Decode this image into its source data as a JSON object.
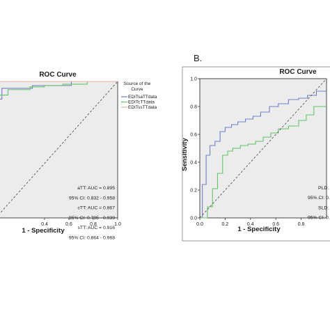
{
  "chart_data": [
    {
      "type": "line",
      "title": "ROC Curve",
      "xlabel": "1 - Specificity",
      "ylabel": "",
      "xlim": [
        0,
        1
      ],
      "ylim": [
        0,
        1
      ],
      "x_ticks": [
        "0.4",
        "0.6",
        "0.8",
        "1.0"
      ],
      "grid": false,
      "legend_title": "Source of the Curve",
      "series": [
        {
          "name": "EDITsaTTdata",
          "color": "#6f7fc9",
          "x": [
            0.0,
            0.05,
            0.05,
            0.3,
            0.3,
            0.62,
            0.62,
            0.75,
            0.75,
            1.0
          ],
          "y": [
            0.87,
            0.87,
            0.95,
            0.95,
            0.97,
            0.97,
            1.0,
            1.0,
            1.0,
            1.0
          ]
        },
        {
          "name": "EDITcTTdata",
          "color": "#62c46a",
          "x": [
            0.0,
            0.1,
            0.1,
            0.28,
            0.28,
            0.4,
            0.4,
            0.55,
            0.55,
            0.75,
            0.75,
            1.0
          ],
          "y": [
            0.9,
            0.9,
            0.94,
            0.94,
            0.96,
            0.96,
            0.97,
            0.97,
            0.98,
            0.98,
            1.0,
            1.0
          ]
        },
        {
          "name": "EDITssTTdata",
          "color": "#e2b6a2",
          "x": [
            0.0,
            0.75,
            0.75,
            1.0
          ],
          "y": [
            1.0,
            1.0,
            1.0,
            1.0
          ]
        },
        {
          "name": "",
          "color": "#555555",
          "dashed": true,
          "x": [
            0.0,
            1.0
          ],
          "y": [
            0.0,
            1.0
          ]
        }
      ],
      "annotations": [
        "aTT: AUC = 0.895",
        "95% CI: 0.832 - 0.958",
        "cTT: AUC = 0.867",
        "95% CI: 0.795 - 0.939",
        "sTT: AUC = 0.916",
        "95% CI: 0.864 - 0.968"
      ]
    },
    {
      "type": "line",
      "panel_label": "B.",
      "title": "ROC Curve",
      "xlabel": "1 - Specificity",
      "ylabel": "Sensitivity",
      "xlim": [
        0,
        1
      ],
      "ylim": [
        0,
        1
      ],
      "x_ticks": [
        "0.0",
        "0.2",
        "0.4",
        "0.6",
        "0.8"
      ],
      "y_ticks": [
        "0.0",
        "0.2",
        "0.4",
        "0.6",
        "0.8",
        "1.0"
      ],
      "grid": false,
      "series": [
        {
          "name": "",
          "color": "#6f7fc9",
          "x": [
            0.0,
            0.02,
            0.02,
            0.05,
            0.05,
            0.08,
            0.08,
            0.12,
            0.12,
            0.16,
            0.16,
            0.2,
            0.2,
            0.25,
            0.25,
            0.3,
            0.3,
            0.36,
            0.36,
            0.42,
            0.42,
            0.48,
            0.48,
            0.55,
            0.55,
            0.62,
            0.62,
            0.7,
            0.7,
            0.78,
            0.78,
            0.85,
            0.85,
            0.92,
            0.92,
            1.0
          ],
          "y": [
            0.0,
            0.0,
            0.24,
            0.24,
            0.45,
            0.45,
            0.52,
            0.52,
            0.55,
            0.55,
            0.62,
            0.62,
            0.65,
            0.65,
            0.67,
            0.67,
            0.69,
            0.69,
            0.71,
            0.71,
            0.73,
            0.73,
            0.76,
            0.76,
            0.8,
            0.8,
            0.82,
            0.82,
            0.85,
            0.85,
            0.86,
            0.86,
            0.88,
            0.88,
            0.91,
            0.91
          ]
        },
        {
          "name": "",
          "color": "#62c46a",
          "x": [
            0.0,
            0.06,
            0.06,
            0.1,
            0.1,
            0.14,
            0.14,
            0.18,
            0.18,
            0.22,
            0.22,
            0.26,
            0.26,
            0.32,
            0.32,
            0.38,
            0.38,
            0.44,
            0.44,
            0.5,
            0.5,
            0.56,
            0.56,
            0.62,
            0.62,
            0.7,
            0.7,
            0.78,
            0.78,
            0.84,
            0.84,
            0.9,
            0.9,
            1.0
          ],
          "y": [
            0.0,
            0.0,
            0.08,
            0.08,
            0.21,
            0.21,
            0.32,
            0.32,
            0.45,
            0.45,
            0.48,
            0.48,
            0.5,
            0.5,
            0.52,
            0.52,
            0.53,
            0.53,
            0.55,
            0.55,
            0.58,
            0.58,
            0.61,
            0.61,
            0.64,
            0.64,
            0.66,
            0.66,
            0.7,
            0.7,
            0.74,
            0.74,
            0.8,
            0.8
          ]
        },
        {
          "name": "",
          "color": "#555555",
          "dashed": true,
          "x": [
            0.0,
            1.0
          ],
          "y": [
            0.0,
            1.0
          ]
        }
      ],
      "annotations": [
        "PLD: AU",
        "95% CI: 0.",
        "SLD: AU",
        "95% CI: 0."
      ]
    }
  ]
}
